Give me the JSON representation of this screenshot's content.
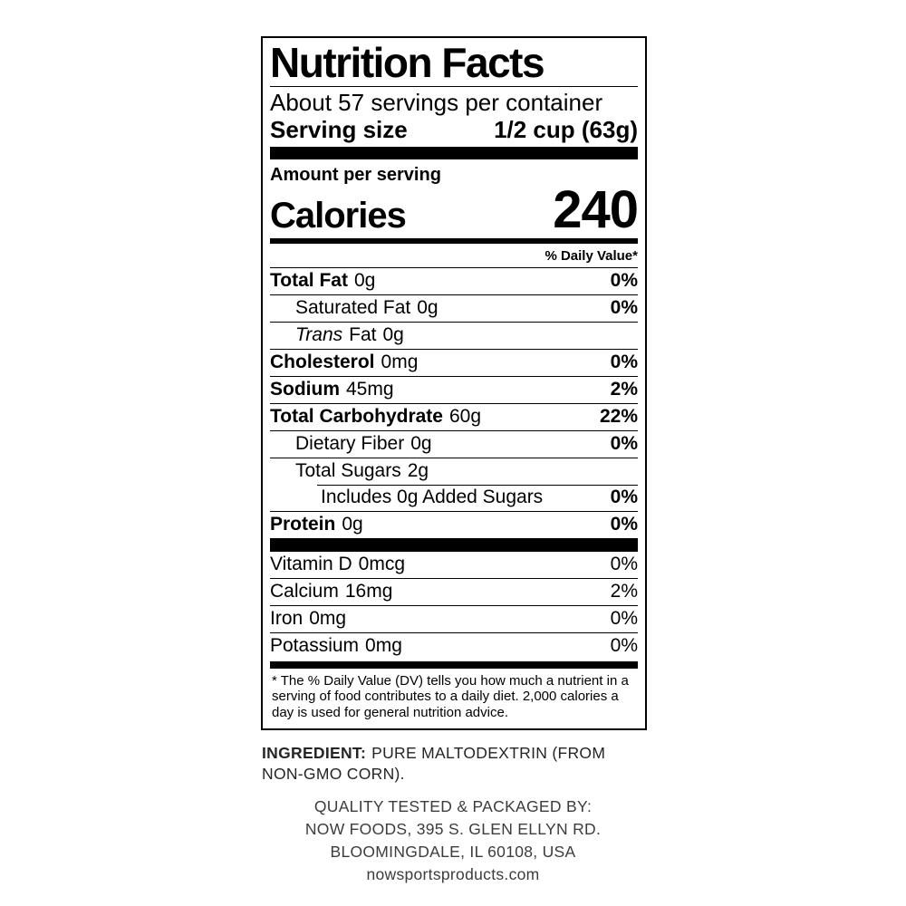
{
  "colors": {
    "text": "#000000",
    "muted_text": "#3c3c3c",
    "background": "#ffffff"
  },
  "label": {
    "title": "Nutrition Facts",
    "servings": "About 57 servings per container",
    "serving_size": {
      "label": "Serving size",
      "value": "1/2 cup (63g)"
    },
    "amount_per_serving": "Amount per serving",
    "calories": {
      "label": "Calories",
      "value": "240"
    },
    "daily_value_header": "% Daily Value*",
    "rows": {
      "total_fat": {
        "name": "Total Fat",
        "amount": "0g",
        "percent": "0%"
      },
      "saturated_fat": {
        "name": "Saturated Fat",
        "amount": "0g",
        "percent": "0%"
      },
      "trans_fat": {
        "name_italic": "Trans",
        "name_rest": "Fat",
        "amount": "0g"
      },
      "cholesterol": {
        "name": "Cholesterol",
        "amount": "0mg",
        "percent": "0%"
      },
      "sodium": {
        "name": "Sodium",
        "amount": "45mg",
        "percent": "2%"
      },
      "total_carbohydrate": {
        "name": "Total Carbohydrate",
        "amount": "60g",
        "percent": "22%"
      },
      "dietary_fiber": {
        "name": "Dietary Fiber",
        "amount": "0g",
        "percent": "0%"
      },
      "total_sugars": {
        "name": "Total Sugars",
        "amount": "2g"
      },
      "added_sugars": {
        "name": "Includes 0g Added Sugars",
        "percent": "0%"
      },
      "protein": {
        "name": "Protein",
        "amount": "0g",
        "percent": "0%"
      }
    },
    "vitamins": {
      "vitamin_d": {
        "name": "Vitamin D",
        "amount": "0mcg",
        "percent": "0%"
      },
      "calcium": {
        "name": "Calcium",
        "amount": "16mg",
        "percent": "2%"
      },
      "iron": {
        "name": "Iron",
        "amount": "0mg",
        "percent": "0%"
      },
      "potassium": {
        "name": "Potassium",
        "amount": "0mg",
        "percent": "0%"
      }
    },
    "footnote": "* The % Daily Value (DV) tells you how much a nutrient in a serving of food contributes to a daily diet. 2,000 calories a day is used for general nutrition advice."
  },
  "ingredient": {
    "label": "INGREDIENT:",
    "text": "PURE MALTODEXTRIN (FROM NON-GMO CORN)."
  },
  "footer": {
    "line1": "QUALITY TESTED & PACKAGED BY:",
    "line2": "NOW FOODS, 395 S. GLEN ELLYN RD.",
    "line3": "BLOOMINGDALE, IL 60108, USA",
    "line4": "nowsportsproducts.com"
  }
}
